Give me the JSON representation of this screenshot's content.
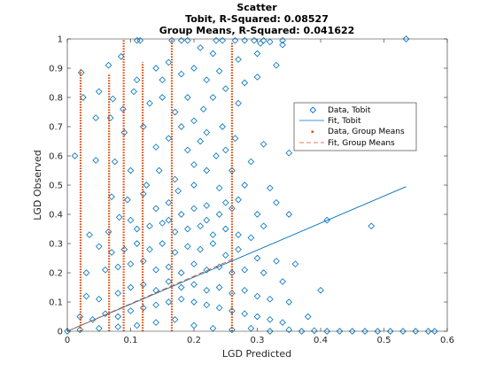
{
  "chart_data": {
    "type": "scatter",
    "title": "Scatter",
    "subtitle_lines": [
      "Tobit, R-Squared: 0.08527",
      "Group Means, R-Squared: 0.041622"
    ],
    "xlabel": "LGD Predicted",
    "ylabel": "LGD Observed",
    "xlim": [
      0,
      0.6
    ],
    "ylim": [
      0,
      1
    ],
    "x_ticks": [
      "0",
      "0.1",
      "0.2",
      "0.3",
      "0.4",
      "0.5",
      "0.6"
    ],
    "y_ticks": [
      "0",
      "0.1",
      "0.2",
      "0.3",
      "0.4",
      "0.5",
      "0.6",
      "0.7",
      "0.8",
      "0.9",
      "1"
    ],
    "grid": false,
    "legend_position": "top-right",
    "colors": {
      "tobit": "#0072BD",
      "group_means": "#D95319"
    },
    "series": [
      {
        "name": "Data, Tobit",
        "marker": "diamond",
        "points": [
          [
            0.535,
            1.0
          ],
          [
            0.11,
            0.995
          ],
          [
            0.115,
            0.995
          ],
          [
            0.165,
            0.995
          ],
          [
            0.18,
            0.995
          ],
          [
            0.19,
            0.995
          ],
          [
            0.235,
            0.995
          ],
          [
            0.245,
            0.995
          ],
          [
            0.265,
            0.995
          ],
          [
            0.28,
            0.995
          ],
          [
            0.295,
            0.995
          ],
          [
            0.31,
            0.995
          ],
          [
            0.34,
            0.995
          ],
          [
            0.34,
            0.98
          ],
          [
            0.305,
            0.985
          ],
          [
            0.32,
            0.99
          ],
          [
            0.022,
            0.885
          ],
          [
            0.065,
            0.91
          ],
          [
            0.085,
            0.94
          ],
          [
            0.14,
            0.9
          ],
          [
            0.16,
            0.92
          ],
          [
            0.18,
            0.88
          ],
          [
            0.2,
            0.9
          ],
          [
            0.22,
            0.86
          ],
          [
            0.24,
            0.89
          ],
          [
            0.25,
            0.83
          ],
          [
            0.28,
            0.85
          ],
          [
            0.3,
            0.87
          ],
          [
            0.33,
            0.91
          ],
          [
            0.27,
            0.93
          ],
          [
            0.23,
            0.95
          ],
          [
            0.15,
            0.86
          ],
          [
            0.11,
            0.86
          ],
          [
            0.3,
            0.95
          ],
          [
            0.21,
            0.97
          ],
          [
            0.025,
            0.8
          ],
          [
            0.05,
            0.82
          ],
          [
            0.072,
            0.795
          ],
          [
            0.088,
            0.76
          ],
          [
            0.105,
            0.82
          ],
          [
            0.13,
            0.78
          ],
          [
            0.15,
            0.8
          ],
          [
            0.17,
            0.75
          ],
          [
            0.19,
            0.8
          ],
          [
            0.215,
            0.76
          ],
          [
            0.23,
            0.8
          ],
          [
            0.245,
            0.7
          ],
          [
            0.27,
            0.78
          ],
          [
            0.2,
            0.72
          ],
          [
            0.18,
            0.7
          ],
          [
            0.22,
            0.68
          ],
          [
            0.045,
            0.73
          ],
          [
            0.068,
            0.73
          ],
          [
            0.09,
            0.68
          ],
          [
            0.12,
            0.7
          ],
          [
            0.14,
            0.63
          ],
          [
            0.16,
            0.66
          ],
          [
            0.19,
            0.62
          ],
          [
            0.21,
            0.65
          ],
          [
            0.235,
            0.6
          ],
          [
            0.25,
            0.62
          ],
          [
            0.265,
            0.66
          ],
          [
            0.31,
            0.64
          ],
          [
            0.35,
            0.61
          ],
          [
            0.29,
            0.58
          ],
          [
            0.2,
            0.57
          ],
          [
            0.012,
            0.6
          ],
          [
            0.045,
            0.585
          ],
          [
            0.075,
            0.58
          ],
          [
            0.1,
            0.55
          ],
          [
            0.125,
            0.5
          ],
          [
            0.145,
            0.55
          ],
          [
            0.17,
            0.52
          ],
          [
            0.2,
            0.5
          ],
          [
            0.22,
            0.55
          ],
          [
            0.24,
            0.49
          ],
          [
            0.26,
            0.55
          ],
          [
            0.28,
            0.5
          ],
          [
            0.32,
            0.49
          ],
          [
            0.33,
            0.44
          ],
          [
            0.27,
            0.45
          ],
          [
            0.175,
            0.48
          ],
          [
            0.07,
            0.46
          ],
          [
            0.095,
            0.45
          ],
          [
            0.12,
            0.47
          ],
          [
            0.14,
            0.42
          ],
          [
            0.16,
            0.44
          ],
          [
            0.18,
            0.4
          ],
          [
            0.2,
            0.42
          ],
          [
            0.22,
            0.43
          ],
          [
            0.24,
            0.4
          ],
          [
            0.26,
            0.42
          ],
          [
            0.3,
            0.4
          ],
          [
            0.35,
            0.4
          ],
          [
            0.48,
            0.36
          ],
          [
            0.41,
            0.38
          ],
          [
            0.31,
            0.36
          ],
          [
            0.25,
            0.44
          ],
          [
            0.035,
            0.33
          ],
          [
            0.065,
            0.34
          ],
          [
            0.082,
            0.39
          ],
          [
            0.1,
            0.38
          ],
          [
            0.11,
            0.35
          ],
          [
            0.13,
            0.36
          ],
          [
            0.15,
            0.37
          ],
          [
            0.17,
            0.34
          ],
          [
            0.19,
            0.35
          ],
          [
            0.21,
            0.36
          ],
          [
            0.23,
            0.33
          ],
          [
            0.25,
            0.35
          ],
          [
            0.27,
            0.33
          ],
          [
            0.29,
            0.32
          ],
          [
            0.22,
            0.38
          ],
          [
            0.16,
            0.38
          ],
          [
            0.05,
            0.29
          ],
          [
            0.07,
            0.27
          ],
          [
            0.09,
            0.28
          ],
          [
            0.11,
            0.3
          ],
          [
            0.13,
            0.28
          ],
          [
            0.15,
            0.3
          ],
          [
            0.17,
            0.27
          ],
          [
            0.19,
            0.29
          ],
          [
            0.21,
            0.28
          ],
          [
            0.23,
            0.3
          ],
          [
            0.25,
            0.26
          ],
          [
            0.27,
            0.28
          ],
          [
            0.3,
            0.25
          ],
          [
            0.33,
            0.24
          ],
          [
            0.36,
            0.23
          ],
          [
            0.03,
            0.2
          ],
          [
            0.06,
            0.21
          ],
          [
            0.08,
            0.22
          ],
          [
            0.1,
            0.23
          ],
          [
            0.12,
            0.24
          ],
          [
            0.14,
            0.21
          ],
          [
            0.16,
            0.22
          ],
          [
            0.18,
            0.2
          ],
          [
            0.2,
            0.23
          ],
          [
            0.22,
            0.21
          ],
          [
            0.24,
            0.22
          ],
          [
            0.26,
            0.2
          ],
          [
            0.28,
            0.21
          ],
          [
            0.31,
            0.2
          ],
          [
            0.4,
            0.14
          ],
          [
            0.34,
            0.17
          ],
          [
            0.03,
            0.12
          ],
          [
            0.05,
            0.11
          ],
          [
            0.08,
            0.13
          ],
          [
            0.1,
            0.15
          ],
          [
            0.12,
            0.16
          ],
          [
            0.14,
            0.14
          ],
          [
            0.16,
            0.17
          ],
          [
            0.18,
            0.15
          ],
          [
            0.2,
            0.16
          ],
          [
            0.22,
            0.14
          ],
          [
            0.24,
            0.15
          ],
          [
            0.26,
            0.13
          ],
          [
            0.28,
            0.14
          ],
          [
            0.3,
            0.12
          ],
          [
            0.32,
            0.11
          ],
          [
            0.35,
            0.1
          ],
          [
            0.38,
            0.05
          ],
          [
            0.02,
            0.05
          ],
          [
            0.04,
            0.04
          ],
          [
            0.06,
            0.06
          ],
          [
            0.08,
            0.05
          ],
          [
            0.1,
            0.07
          ],
          [
            0.12,
            0.08
          ],
          [
            0.14,
            0.09
          ],
          [
            0.16,
            0.1
          ],
          [
            0.18,
            0.11
          ],
          [
            0.2,
            0.1
          ],
          [
            0.22,
            0.09
          ],
          [
            0.24,
            0.08
          ],
          [
            0.26,
            0.07
          ],
          [
            0.28,
            0.06
          ],
          [
            0.3,
            0.05
          ],
          [
            0.32,
            0.04
          ],
          [
            0.34,
            0.03
          ],
          [
            0.0,
            0.0
          ],
          [
            0.02,
            0.005
          ],
          [
            0.05,
            0.01
          ],
          [
            0.08,
            0.015
          ],
          [
            0.11,
            0.02
          ],
          [
            0.14,
            0.03
          ],
          [
            0.17,
            0.04
          ],
          [
            0.2,
            0.02
          ],
          [
            0.23,
            0.01
          ],
          [
            0.26,
            0.005
          ],
          [
            0.29,
            0.01
          ],
          [
            0.32,
            0.0
          ],
          [
            0.35,
            0.005
          ],
          [
            0.37,
            0.0
          ],
          [
            0.39,
            0.002
          ],
          [
            0.41,
            0.0
          ],
          [
            0.43,
            0.0
          ],
          [
            0.45,
            0.0
          ],
          [
            0.47,
            0.0
          ],
          [
            0.49,
            0.0
          ],
          [
            0.51,
            0.0
          ],
          [
            0.53,
            0.0
          ],
          [
            0.55,
            0.0
          ],
          [
            0.57,
            0.0
          ],
          [
            0.58,
            0.0
          ]
        ]
      },
      {
        "name": "Fit, Tobit",
        "style": "solid line",
        "x": [
          0.0,
          0.535
        ],
        "y": [
          0.0,
          0.495
        ]
      },
      {
        "name": "Data, Group Means",
        "marker": "small dot",
        "x_groups": [
          0.021,
          0.066,
          0.089,
          0.119,
          0.165,
          0.26
        ],
        "y_ranges": [
          [
            0.0,
            0.9
          ],
          [
            0.0,
            0.88
          ],
          [
            0.0,
            1.0
          ],
          [
            0.0,
            0.92
          ],
          [
            0.0,
            1.0
          ],
          [
            0.0,
            0.99
          ]
        ]
      },
      {
        "name": "Fit, Group Means",
        "style": "dashed line",
        "x": [
          0.0,
          0.265
        ],
        "y": [
          0.0,
          0.25
        ]
      }
    ]
  }
}
